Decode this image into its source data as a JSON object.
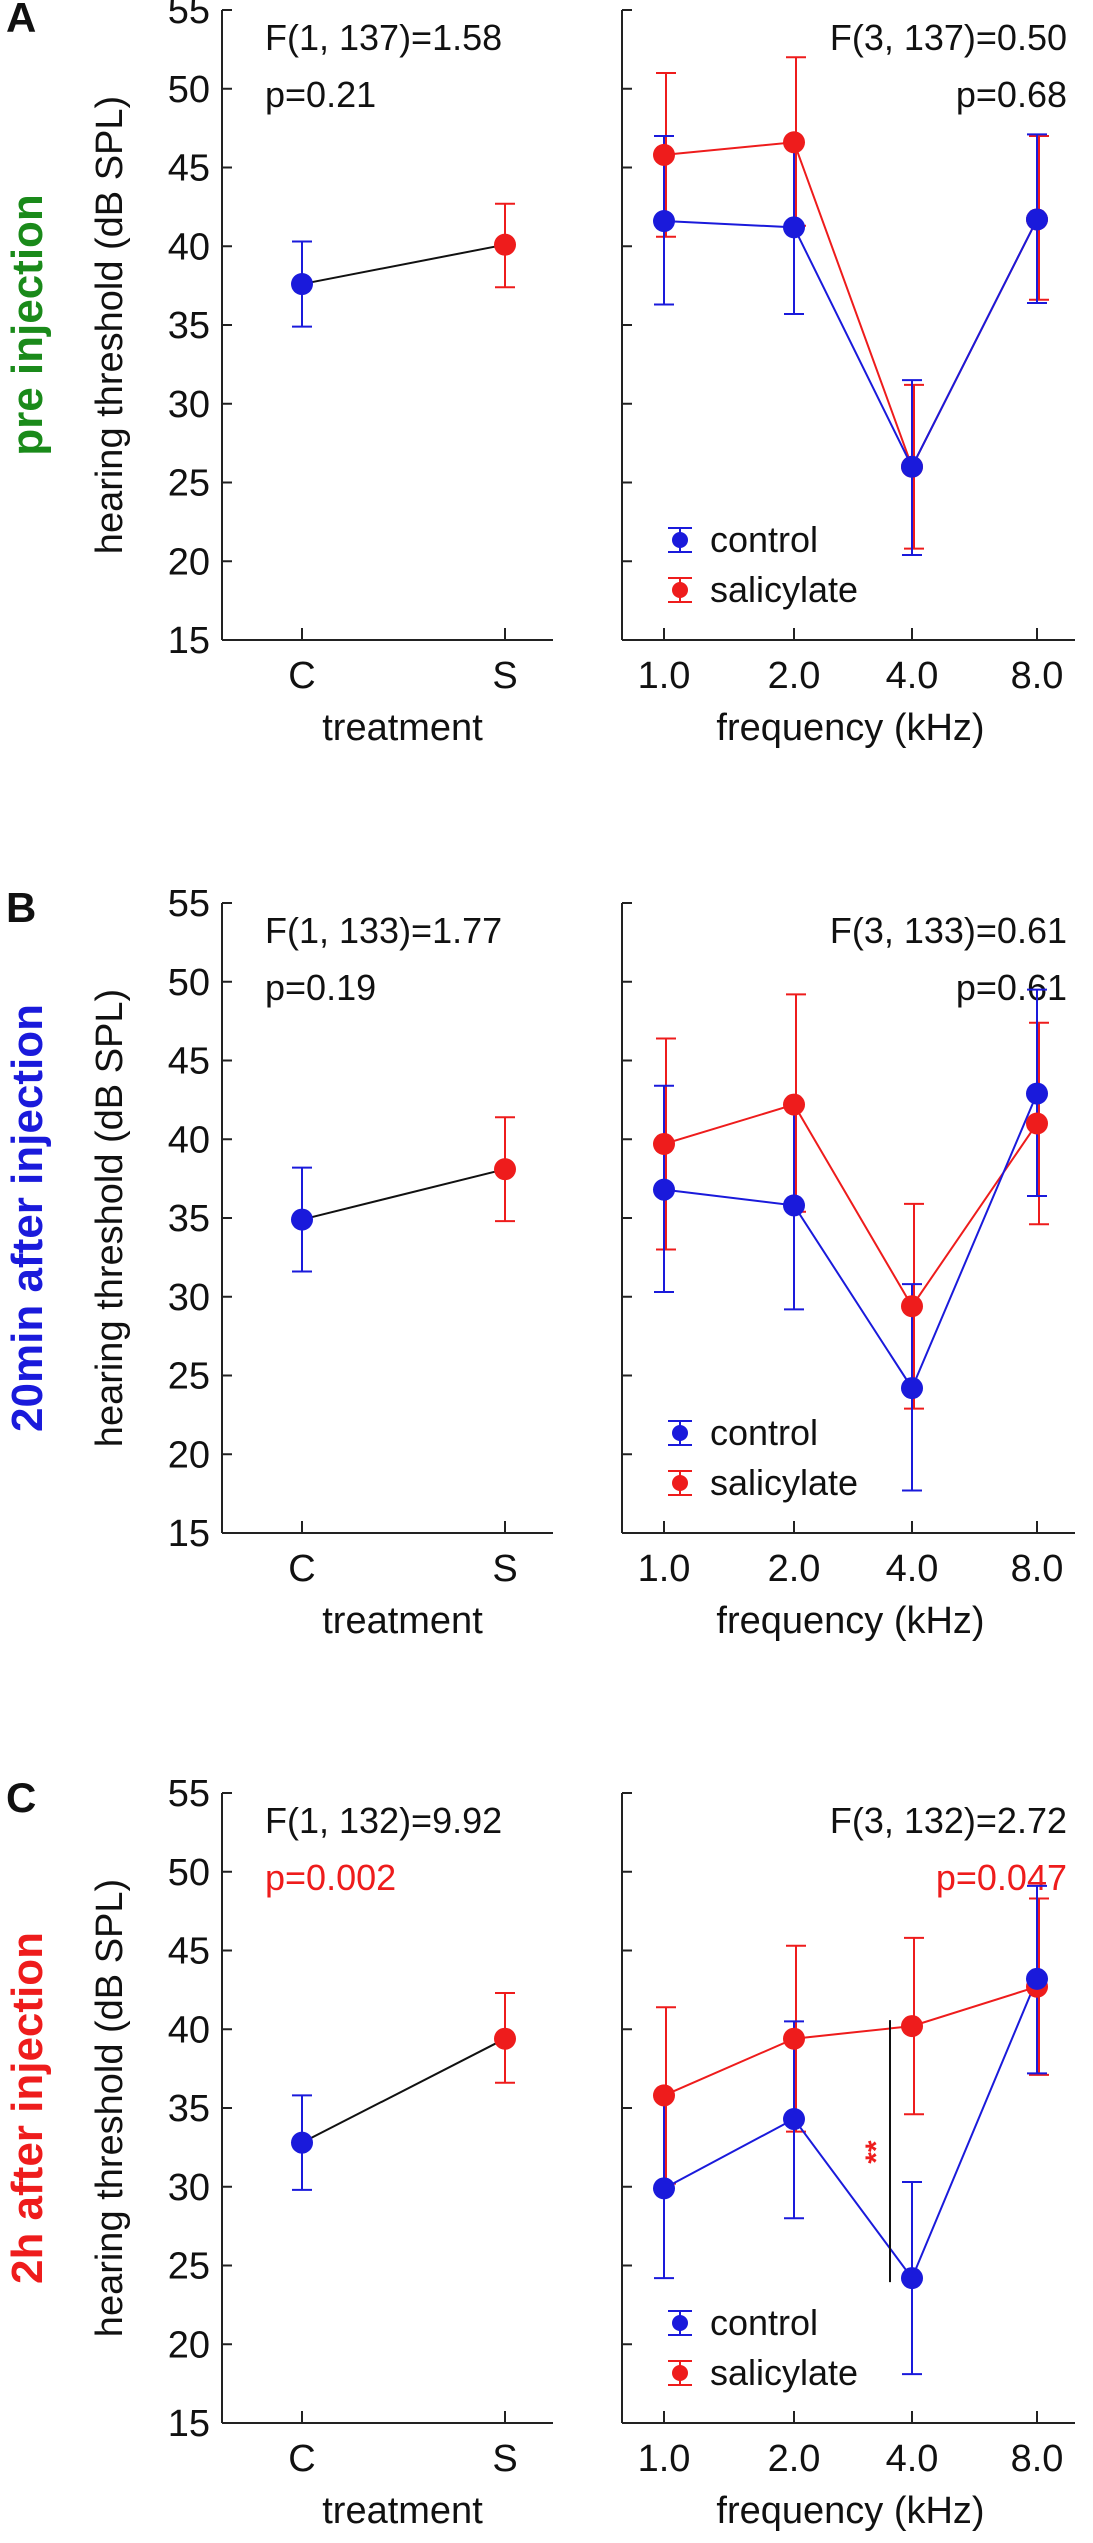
{
  "colors": {
    "control": "#1a1adb",
    "salicylate": "#ee1c1c",
    "treatment_line": "#111111",
    "green": "#1a8a1a"
  },
  "figure": {
    "ylabel": "hearing threshold (dB SPL)",
    "legend": [
      "control",
      "salicylate"
    ],
    "treatment_xlabel": "treatment",
    "frequency_xlabel": "frequency (kHz)",
    "treatment_ticks": [
      "C",
      "S"
    ],
    "frequency_ticks": [
      "1.0",
      "2.0",
      "4.0",
      "8.0"
    ],
    "y_ticks": [
      "15",
      "20",
      "25",
      "30",
      "35",
      "40",
      "45",
      "50",
      "55"
    ]
  },
  "chart_data": [
    {
      "panel": "A",
      "row_label": "pre injection",
      "row_label_color": "#1a8a1a",
      "type": "line",
      "title": "",
      "ylabel": "hearing threshold (dB SPL)",
      "ylim": [
        15,
        55
      ],
      "treatment": {
        "xlabel": "treatment",
        "categories": [
          "C",
          "S"
        ],
        "values": [
          37.6,
          40.1
        ],
        "error_low": [
          34.9,
          37.4
        ],
        "error_high": [
          40.3,
          42.7
        ],
        "stat": "F(1, 137)=1.58",
        "p": "p=0.21",
        "p_significant": false
      },
      "frequency": {
        "xlabel": "frequency (kHz)",
        "categories": [
          "1.0",
          "2.0",
          "4.0",
          "8.0"
        ],
        "series": [
          {
            "name": "control",
            "values": [
              41.6,
              41.2,
              26.0,
              41.7
            ],
            "error_low": [
              36.3,
              35.7,
              20.4,
              36.4
            ],
            "error_high": [
              47.0,
              46.7,
              31.5,
              47.1
            ]
          },
          {
            "name": "salicylate",
            "values": [
              45.8,
              46.6,
              26.0,
              41.7
            ],
            "error_low": [
              40.6,
              41.3,
              20.8,
              36.6
            ],
            "error_high": [
              51.0,
              52.0,
              31.2,
              47.0
            ]
          }
        ],
        "stat": "F(3, 137)=0.50",
        "p": "p=0.68",
        "p_significant": false
      }
    },
    {
      "panel": "B",
      "row_label": "20min after injection",
      "row_label_color": "#1a1adb",
      "type": "line",
      "title": "",
      "ylabel": "hearing threshold (dB SPL)",
      "ylim": [
        15,
        55
      ],
      "treatment": {
        "xlabel": "treatment",
        "categories": [
          "C",
          "S"
        ],
        "values": [
          34.9,
          38.1
        ],
        "error_low": [
          31.6,
          34.8
        ],
        "error_high": [
          38.2,
          41.4
        ],
        "stat": "F(1, 133)=1.77",
        "p": "p=0.19",
        "p_significant": false
      },
      "frequency": {
        "xlabel": "frequency (kHz)",
        "categories": [
          "1.0",
          "2.0",
          "4.0",
          "8.0"
        ],
        "series": [
          {
            "name": "control",
            "values": [
              36.8,
              35.8,
              24.2,
              42.9
            ],
            "error_low": [
              30.3,
              29.2,
              17.7,
              36.4
            ],
            "error_high": [
              43.4,
              42.4,
              30.8,
              49.5
            ]
          },
          {
            "name": "salicylate",
            "values": [
              39.7,
              42.2,
              29.4,
              41.0
            ],
            "error_low": [
              33.0,
              35.4,
              22.9,
              34.6
            ],
            "error_high": [
              46.4,
              49.2,
              35.9,
              47.4
            ]
          }
        ],
        "stat": "F(3, 133)=0.61",
        "p": "p=0.61",
        "p_significant": false
      }
    },
    {
      "panel": "C",
      "row_label": "2h after injection",
      "row_label_color": "#ee1c1c",
      "type": "line",
      "title": "",
      "ylabel": "hearing threshold (dB SPL)",
      "ylim": [
        15,
        55
      ],
      "treatment": {
        "xlabel": "treatment",
        "categories": [
          "C",
          "S"
        ],
        "values": [
          32.8,
          39.4
        ],
        "error_low": [
          29.8,
          36.6
        ],
        "error_high": [
          35.8,
          42.3
        ],
        "stat": "F(1, 132)=9.92",
        "p": "p=0.002",
        "p_significant": true
      },
      "frequency": {
        "xlabel": "frequency (kHz)",
        "categories": [
          "1.0",
          "2.0",
          "4.0",
          "8.0"
        ],
        "series": [
          {
            "name": "control",
            "values": [
              29.9,
              34.3,
              24.2,
              43.2
            ],
            "error_low": [
              24.2,
              28.0,
              18.1,
              37.2
            ],
            "error_high": [
              35.8,
              40.5,
              30.3,
              49.1
            ]
          },
          {
            "name": "salicylate",
            "values": [
              35.8,
              39.4,
              40.2,
              42.7
            ],
            "error_low": [
              30.2,
              33.5,
              34.6,
              37.1
            ],
            "error_high": [
              41.4,
              45.3,
              45.8,
              48.3
            ]
          }
        ],
        "stat": "F(3, 132)=2.72",
        "p": "p=0.047",
        "p_significant": true,
        "annotation": {
          "text": "**",
          "category": "4.0",
          "y_from": 24.2,
          "y_to": 40.2
        }
      }
    }
  ]
}
